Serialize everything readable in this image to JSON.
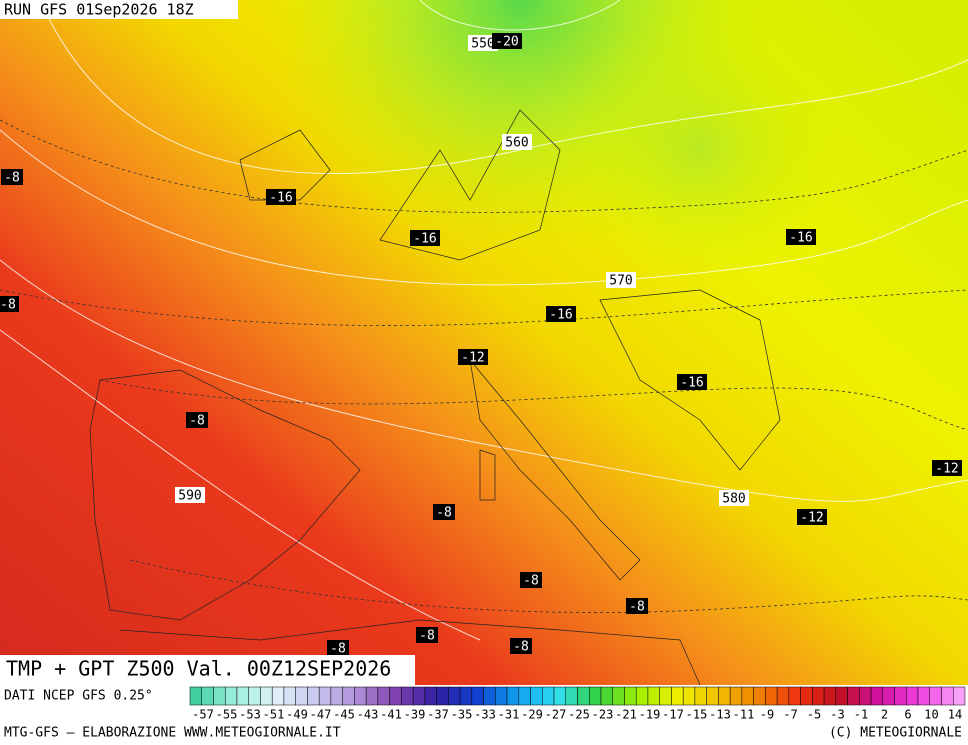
{
  "header": {
    "run": "RUN GFS 01Sep2026 18Z"
  },
  "map": {
    "title": "TMP + GPT Z500 Val. 00Z12SEP2026",
    "contour_labels": [
      "550",
      "-20",
      "560",
      "-8",
      "-16",
      "-16",
      "-16",
      "570",
      "-8",
      "-16",
      "-12",
      "-16",
      "-8",
      "590",
      "580",
      "-8",
      "-12",
      "-12",
      "-8",
      "-8",
      "-8",
      "-8",
      "-8"
    ]
  },
  "colorbar": {
    "source": "DATI NCEP GFS 0.25°",
    "labels": [
      "-57",
      "-55",
      "-53",
      "-51",
      "-49",
      "-47",
      "-45",
      "-43",
      "-41",
      "-39",
      "-37",
      "-35",
      "-33",
      "-31",
      "-29",
      "-27",
      "-25",
      "-23",
      "-21",
      "-19",
      "-17",
      "-15",
      "-13",
      "-11",
      "-9",
      "-7",
      "-5",
      "-3",
      "-1",
      "2",
      "6",
      "10",
      "14"
    ]
  },
  "footer": {
    "credit": "MTG-GFS — ELABORAZIONE WWW.METEOGIORNALE.IT",
    "copyright": "(C) METEOGIORNALE"
  }
}
